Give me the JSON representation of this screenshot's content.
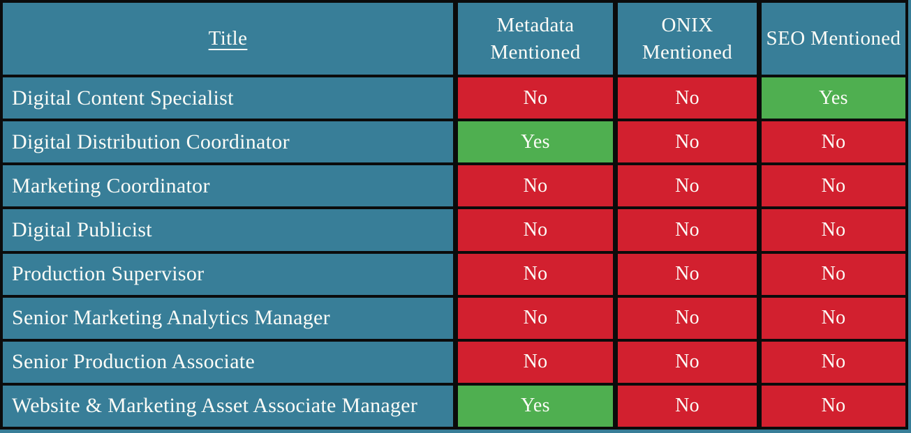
{
  "chart_data": {
    "type": "table",
    "columns": [
      "Title",
      "Metadata Mentioned",
      "ONIX Mentioned",
      "SEO Mentioned"
    ],
    "rows": [
      [
        "Digital Content Specialist",
        "No",
        "No",
        "Yes"
      ],
      [
        "Digital Distribution Coordinator",
        "Yes",
        "No",
        "No"
      ],
      [
        "Marketing Coordinator",
        "No",
        "No",
        "No"
      ],
      [
        "Digital Publicist",
        "No",
        "No",
        "No"
      ],
      [
        "Production Supervisor",
        "No",
        "No",
        "No"
      ],
      [
        "Senior Marketing Analytics Manager",
        "No",
        "No",
        "No"
      ],
      [
        "Senior Production Associate",
        "No",
        "No",
        "No"
      ],
      [
        "Website & Marketing Asset Associate Manager",
        "Yes",
        "No",
        "No"
      ]
    ],
    "legend_semantics": {
      "yes_label": "Yes",
      "no_label": "No"
    },
    "layout": {
      "header_row": true,
      "grid_on": true
    }
  },
  "colors": {
    "teal": "#387E98",
    "red": "#D2202F",
    "green": "#4FAF50",
    "border": "#0B0B0B",
    "text": "#FCFCF7"
  }
}
